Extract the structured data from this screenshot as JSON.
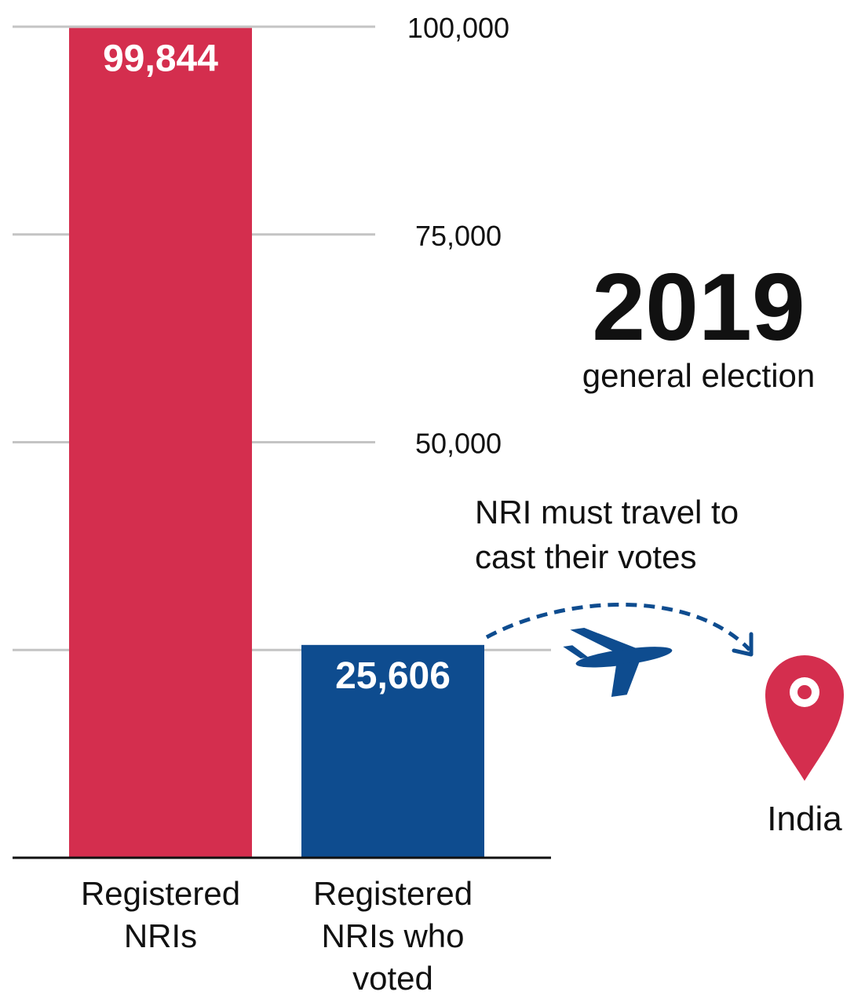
{
  "chart_data": {
    "type": "bar",
    "categories": [
      [
        "Registered",
        "NRIs"
      ],
      [
        "Registered",
        "NRIs who",
        "voted"
      ]
    ],
    "values": [
      99844,
      25606
    ],
    "value_labels": [
      "99,844",
      "25,606"
    ],
    "bar_colors": [
      "#d42e4e",
      "#0e4c8f"
    ],
    "yticks": [
      25000,
      50000,
      75000,
      100000
    ],
    "ytick_labels": [
      "",
      "50,000",
      "75,000",
      "100,000"
    ],
    "ylim": [
      0,
      100000
    ],
    "grid": true,
    "title": "2019",
    "subtitle": "general election"
  },
  "annotation": {
    "lines": [
      "NRI must travel to",
      "cast their votes"
    ],
    "destination": "India",
    "plane_icon": "airplane-icon",
    "pin_icon": "location-pin-icon",
    "arrow_color": "#0e4c8f",
    "pin_color": "#d42e4e"
  }
}
